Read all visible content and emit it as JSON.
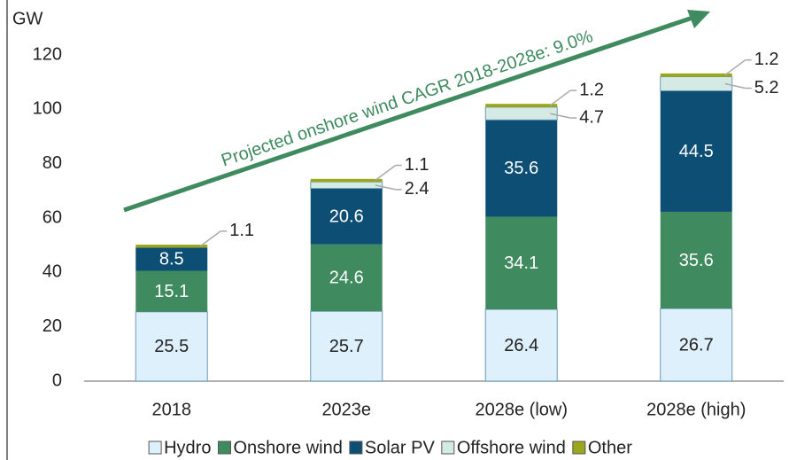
{
  "chart_data": {
    "type": "bar",
    "stacked": true,
    "y_label": "GW",
    "annotation": "Projected onshore wind CAGR 2018-2028e: 9.0%",
    "categories": [
      "2018",
      "2023e",
      "2028e (low)",
      "2028e (high)"
    ],
    "series": [
      {
        "name": "Hydro",
        "color": "#ddf0fb",
        "values": [
          25.5,
          25.7,
          26.4,
          26.7
        ]
      },
      {
        "name": "Onshore wind",
        "color": "#3f8a5f",
        "values": [
          15.1,
          24.6,
          34.1,
          35.6
        ]
      },
      {
        "name": "Solar PV",
        "color": "#0c4e74",
        "values": [
          8.5,
          20.6,
          35.6,
          44.5
        ]
      },
      {
        "name": "Offshore wind",
        "color": "#d5eae4",
        "values": [
          null,
          2.4,
          4.7,
          5.2
        ]
      },
      {
        "name": "Other",
        "color": "#9aa61c",
        "values": [
          1.1,
          1.1,
          1.2,
          1.2
        ]
      }
    ],
    "ylim": [
      0,
      120
    ],
    "yticks": [
      0,
      20,
      40,
      60,
      80,
      100,
      120
    ],
    "grid": false
  }
}
